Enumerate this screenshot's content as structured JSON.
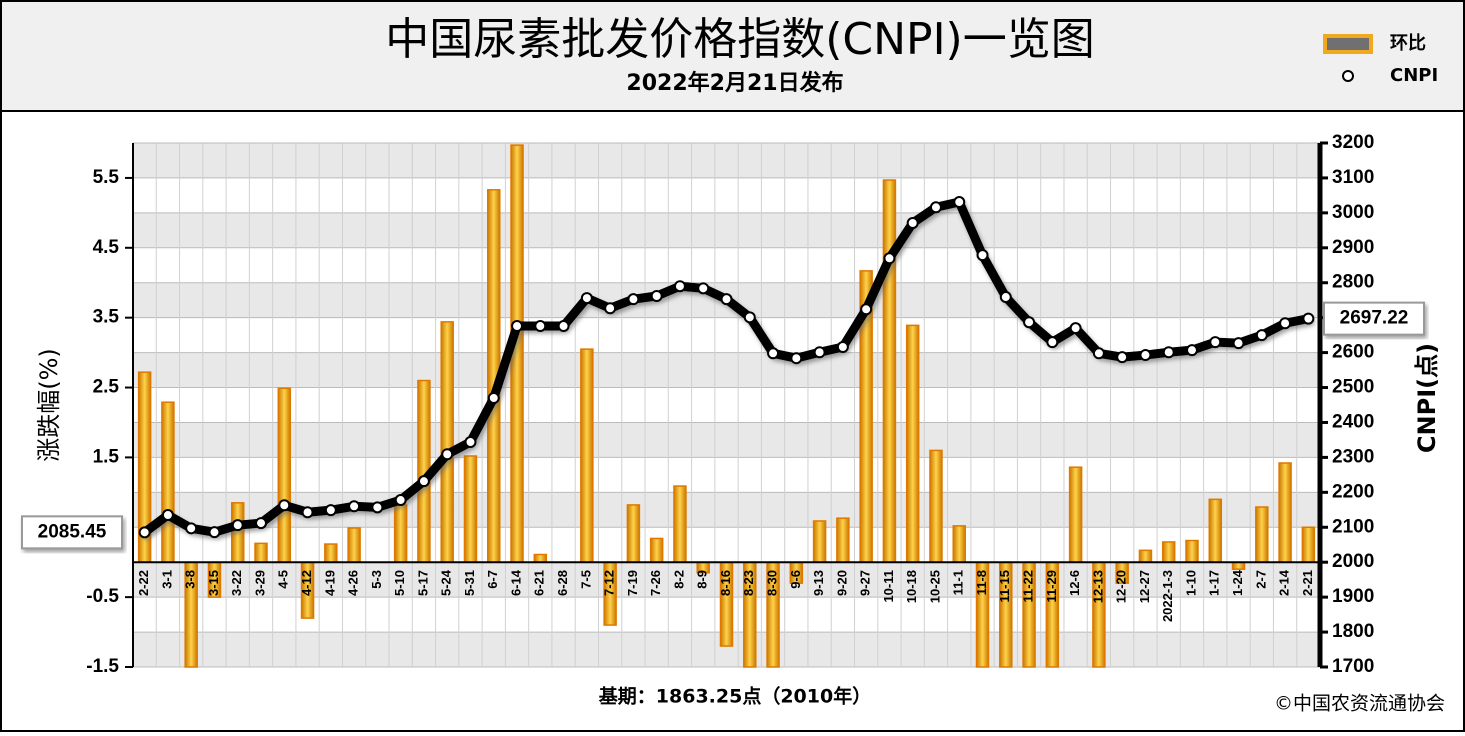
{
  "chart_data": {
    "type": "bar_line",
    "title": "中国尿素批发价格指数(CNPI)一览图",
    "subtitle": "2022年2月21日发布",
    "ylabel": "涨跌幅(%)",
    "y2label": "CNPI(点)",
    "footnote": "基期：1863.25点（2010年）",
    "source": "©中国农资流通协会",
    "categories": [
      "2-22",
      "3-1",
      "3-8",
      "3-15",
      "3-22",
      "3-29",
      "4-5",
      "4-12",
      "4-19",
      "4-26",
      "5-3",
      "5-10",
      "5-17",
      "5-24",
      "5-31",
      "6-7",
      "6-14",
      "6-21",
      "6-28",
      "7-5",
      "7-12",
      "7-19",
      "7-26",
      "8-2",
      "8-9",
      "8-16",
      "8-23",
      "8-30",
      "9-6",
      "9-13",
      "9-20",
      "9-27",
      "10-11",
      "10-18",
      "10-25",
      "11-1",
      "11-8",
      "11-15",
      "11-22",
      "11-29",
      "12-6",
      "12-13",
      "12-20",
      "12-27",
      "2022-1-3",
      "1-10",
      "1-17",
      "1-24",
      "2-7",
      "2-14",
      "2-21"
    ],
    "series": [
      {
        "name": "环比",
        "type": "bar",
        "color": "#f0a81c",
        "values": [
          2.72,
          2.29,
          -1.5,
          -0.5,
          0.85,
          0.27,
          2.49,
          -0.8,
          0.26,
          0.49,
          0,
          0.82,
          2.6,
          3.44,
          1.52,
          5.33,
          5.97,
          0.11,
          0,
          3.05,
          -0.9,
          0.82,
          0.34,
          1.09,
          -0.15,
          -1.2,
          -1.5,
          -1.5,
          -0.3,
          0.59,
          0.63,
          4.17,
          5.47,
          3.39,
          1.6,
          0.52,
          -1.5,
          -1.5,
          -1.5,
          -1.5,
          1.36,
          -1.5,
          -0.3,
          0.17,
          0.29,
          0.31,
          0.9,
          -0.1,
          0.79,
          1.42,
          0.5
        ]
      },
      {
        "name": "CNPI",
        "type": "line",
        "axis": "y2",
        "color": "#000000",
        "values": [
          2085.45,
          2135,
          2097,
          2086,
          2106,
          2112,
          2163,
          2143,
          2149,
          2160,
          2157,
          2178,
          2232,
          2309,
          2344,
          2470,
          2676,
          2676,
          2676,
          2756,
          2727,
          2753,
          2762,
          2790,
          2784,
          2753,
          2701,
          2598,
          2584,
          2601,
          2616,
          2724,
          2870,
          2971,
          3016,
          3031,
          2879,
          2759,
          2687,
          2630,
          2670,
          2598,
          2587,
          2593,
          2601,
          2607,
          2630,
          2627,
          2650,
          2684,
          2697.22
        ]
      }
    ],
    "ylim": [
      -1.5,
      6
    ],
    "yticks": [
      5.5,
      4.5,
      3.5,
      2.5,
      1.5,
      -0.5,
      -1.5
    ],
    "y2lim": [
      1700,
      3200
    ],
    "y2ticks": [
      1700,
      1800,
      1900,
      2000,
      2100,
      2200,
      2300,
      2400,
      2500,
      2600,
      2700,
      2800,
      2900,
      3000,
      3100,
      3200
    ],
    "grid": true
  }
}
